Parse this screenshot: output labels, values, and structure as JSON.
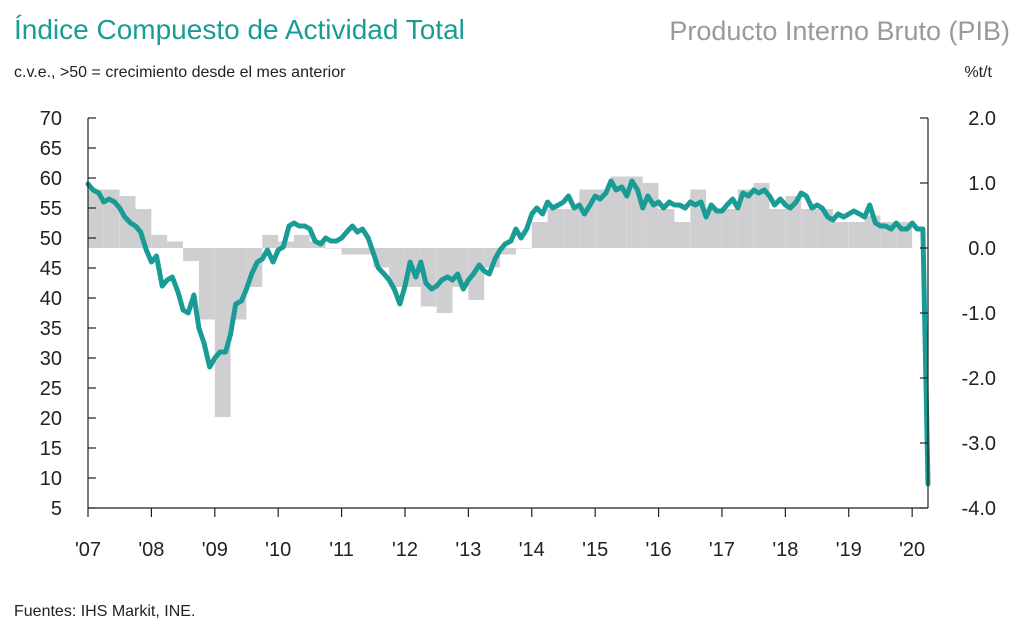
{
  "header": {
    "title": "Índice Compuesto de Actividad Total",
    "right_title": "Producto Interno Bruto (PIB)",
    "subtitle": "c.v.e., >50 = crecimiento desde el mes anterior",
    "right_unit": "%t/t"
  },
  "footer": {
    "source": "Fuentes: IHS Markit, INE."
  },
  "colors": {
    "line": "#1a9c96",
    "bars": "#cfcfd1",
    "axis": "#222222"
  },
  "chart_data": {
    "type": "line",
    "title": "Índice Compuesto de Actividad Total",
    "subtitle": "c.v.e., >50 = crecimiento desde el mes anterior",
    "grid": false,
    "x_tick_labels": [
      "'07",
      "'08",
      "'09",
      "'10",
      "'11",
      "'12",
      "'13",
      "'14",
      "'15",
      "'16",
      "'17",
      "'18",
      "'19",
      "'20"
    ],
    "x_range": [
      2007.0,
      2020.25
    ],
    "left_axis": {
      "ylim": [
        5,
        70
      ],
      "ticks": [
        70,
        65,
        60,
        55,
        50,
        45,
        40,
        35,
        30,
        25,
        20,
        15,
        10,
        5
      ]
    },
    "right_axis": {
      "ylim": [
        -4.0,
        2.0
      ],
      "unit": "%t/t",
      "tick_labels": [
        "2.0",
        "1.0",
        "0.0",
        "-1.0",
        "-2.0",
        "-3.0",
        "-4.0"
      ],
      "tick_values": [
        2.0,
        1.0,
        0.0,
        -1.0,
        -2.0,
        -3.0,
        -4.0
      ]
    },
    "series": [
      {
        "name": "Índice Compuesto de Actividad Total",
        "axis": "left",
        "style": "line",
        "points": [
          [
            2007.0,
            59.0
          ],
          [
            2007.08,
            58.0
          ],
          [
            2007.17,
            57.5
          ],
          [
            2007.25,
            56.0
          ],
          [
            2007.33,
            56.5
          ],
          [
            2007.42,
            56.0
          ],
          [
            2007.5,
            55.0
          ],
          [
            2007.58,
            53.5
          ],
          [
            2007.67,
            52.5
          ],
          [
            2007.75,
            52.0
          ],
          [
            2007.83,
            51.0
          ],
          [
            2007.92,
            48.0
          ],
          [
            2008.0,
            46.0
          ],
          [
            2008.08,
            47.0
          ],
          [
            2008.17,
            42.0
          ],
          [
            2008.25,
            43.0
          ],
          [
            2008.33,
            43.5
          ],
          [
            2008.42,
            41.0
          ],
          [
            2008.5,
            38.0
          ],
          [
            2008.58,
            37.5
          ],
          [
            2008.67,
            40.5
          ],
          [
            2008.75,
            35.0
          ],
          [
            2008.83,
            32.5
          ],
          [
            2008.92,
            28.5
          ],
          [
            2009.0,
            30.0
          ],
          [
            2009.08,
            31.0
          ],
          [
            2009.17,
            31.0
          ],
          [
            2009.25,
            34.0
          ],
          [
            2009.33,
            39.0
          ],
          [
            2009.42,
            39.5
          ],
          [
            2009.5,
            41.5
          ],
          [
            2009.58,
            44.0
          ],
          [
            2009.67,
            46.0
          ],
          [
            2009.75,
            46.5
          ],
          [
            2009.83,
            48.0
          ],
          [
            2009.92,
            46.0
          ],
          [
            2010.0,
            48.0
          ],
          [
            2010.08,
            48.5
          ],
          [
            2010.17,
            52.0
          ],
          [
            2010.25,
            52.5
          ],
          [
            2010.33,
            52.0
          ],
          [
            2010.42,
            52.0
          ],
          [
            2010.5,
            51.5
          ],
          [
            2010.58,
            49.5
          ],
          [
            2010.67,
            49.0
          ],
          [
            2010.75,
            50.0
          ],
          [
            2010.83,
            49.5
          ],
          [
            2010.92,
            49.5
          ],
          [
            2011.0,
            50.0
          ],
          [
            2011.08,
            51.0
          ],
          [
            2011.17,
            52.0
          ],
          [
            2011.25,
            51.0
          ],
          [
            2011.33,
            51.5
          ],
          [
            2011.42,
            50.0
          ],
          [
            2011.5,
            47.5
          ],
          [
            2011.58,
            45.0
          ],
          [
            2011.67,
            44.0
          ],
          [
            2011.75,
            43.0
          ],
          [
            2011.83,
            41.5
          ],
          [
            2011.92,
            39.0
          ],
          [
            2012.0,
            42.0
          ],
          [
            2012.08,
            46.0
          ],
          [
            2012.17,
            43.5
          ],
          [
            2012.25,
            46.0
          ],
          [
            2012.33,
            42.5
          ],
          [
            2012.42,
            41.5
          ],
          [
            2012.5,
            42.0
          ],
          [
            2012.58,
            43.0
          ],
          [
            2012.67,
            43.5
          ],
          [
            2012.75,
            43.0
          ],
          [
            2012.83,
            44.0
          ],
          [
            2012.92,
            41.5
          ],
          [
            2013.0,
            43.0
          ],
          [
            2013.08,
            44.0
          ],
          [
            2013.17,
            45.5
          ],
          [
            2013.25,
            44.5
          ],
          [
            2013.33,
            44.0
          ],
          [
            2013.42,
            46.5
          ],
          [
            2013.5,
            48.0
          ],
          [
            2013.58,
            49.0
          ],
          [
            2013.67,
            49.5
          ],
          [
            2013.75,
            51.5
          ],
          [
            2013.83,
            50.0
          ],
          [
            2013.92,
            51.5
          ],
          [
            2014.0,
            54.0
          ],
          [
            2014.08,
            55.0
          ],
          [
            2014.17,
            54.0
          ],
          [
            2014.25,
            56.0
          ],
          [
            2014.33,
            55.0
          ],
          [
            2014.42,
            55.5
          ],
          [
            2014.5,
            56.0
          ],
          [
            2014.58,
            57.0
          ],
          [
            2014.67,
            55.0
          ],
          [
            2014.75,
            55.5
          ],
          [
            2014.83,
            54.0
          ],
          [
            2014.92,
            55.5
          ],
          [
            2015.0,
            57.0
          ],
          [
            2015.08,
            56.5
          ],
          [
            2015.17,
            57.5
          ],
          [
            2015.25,
            59.5
          ],
          [
            2015.33,
            58.0
          ],
          [
            2015.42,
            58.5
          ],
          [
            2015.5,
            57.0
          ],
          [
            2015.58,
            59.5
          ],
          [
            2015.67,
            58.0
          ],
          [
            2015.75,
            55.0
          ],
          [
            2015.83,
            57.0
          ],
          [
            2015.92,
            55.5
          ],
          [
            2016.0,
            56.0
          ],
          [
            2016.08,
            55.0
          ],
          [
            2016.17,
            56.0
          ],
          [
            2016.25,
            55.5
          ],
          [
            2016.33,
            55.5
          ],
          [
            2016.42,
            55.0
          ],
          [
            2016.5,
            56.0
          ],
          [
            2016.58,
            55.5
          ],
          [
            2016.67,
            56.0
          ],
          [
            2016.75,
            53.5
          ],
          [
            2016.83,
            55.5
          ],
          [
            2016.92,
            54.5
          ],
          [
            2017.0,
            54.5
          ],
          [
            2017.08,
            55.5
          ],
          [
            2017.17,
            56.5
          ],
          [
            2017.25,
            55.0
          ],
          [
            2017.33,
            57.5
          ],
          [
            2017.42,
            57.0
          ],
          [
            2017.5,
            58.0
          ],
          [
            2017.58,
            57.5
          ],
          [
            2017.67,
            58.0
          ],
          [
            2017.75,
            57.0
          ],
          [
            2017.83,
            55.5
          ],
          [
            2017.92,
            56.5
          ],
          [
            2018.0,
            55.5
          ],
          [
            2018.08,
            55.0
          ],
          [
            2018.17,
            56.0
          ],
          [
            2018.25,
            57.5
          ],
          [
            2018.33,
            57.0
          ],
          [
            2018.42,
            55.0
          ],
          [
            2018.5,
            55.5
          ],
          [
            2018.58,
            55.0
          ],
          [
            2018.67,
            53.5
          ],
          [
            2018.75,
            53.0
          ],
          [
            2018.83,
            54.0
          ],
          [
            2018.92,
            53.5
          ],
          [
            2019.0,
            54.0
          ],
          [
            2019.08,
            54.5
          ],
          [
            2019.17,
            54.0
          ],
          [
            2019.25,
            53.5
          ],
          [
            2019.33,
            55.5
          ],
          [
            2019.42,
            52.5
          ],
          [
            2019.5,
            52.0
          ],
          [
            2019.58,
            52.0
          ],
          [
            2019.67,
            51.5
          ],
          [
            2019.75,
            52.5
          ],
          [
            2019.83,
            51.5
          ],
          [
            2019.92,
            51.5
          ],
          [
            2020.0,
            52.5
          ],
          [
            2020.08,
            51.5
          ],
          [
            2020.17,
            51.5
          ],
          [
            2020.25,
            9.0
          ]
        ]
      },
      {
        "name": "Producto Interno Bruto (PIB)",
        "axis": "right",
        "style": "bar",
        "bar_width": 0.25,
        "points": [
          [
            2007.0,
            0.9
          ],
          [
            2007.25,
            0.9
          ],
          [
            2007.5,
            0.8
          ],
          [
            2007.75,
            0.6
          ],
          [
            2008.0,
            0.2
          ],
          [
            2008.25,
            0.1
          ],
          [
            2008.5,
            -0.2
          ],
          [
            2008.75,
            -1.1
          ],
          [
            2009.0,
            -2.6
          ],
          [
            2009.25,
            -1.1
          ],
          [
            2009.5,
            -0.6
          ],
          [
            2009.75,
            0.2
          ],
          [
            2010.0,
            0.1
          ],
          [
            2010.25,
            0.2
          ],
          [
            2010.5,
            0.1
          ],
          [
            2010.75,
            0.0
          ],
          [
            2011.0,
            -0.1
          ],
          [
            2011.25,
            -0.1
          ],
          [
            2011.5,
            -0.3
          ],
          [
            2011.75,
            -0.6
          ],
          [
            2012.0,
            -0.6
          ],
          [
            2012.25,
            -0.9
          ],
          [
            2012.5,
            -1.0
          ],
          [
            2012.75,
            -0.6
          ],
          [
            2013.0,
            -0.8
          ],
          [
            2013.25,
            -0.3
          ],
          [
            2013.5,
            -0.1
          ],
          [
            2013.75,
            0.0
          ],
          [
            2014.0,
            0.4
          ],
          [
            2014.25,
            0.6
          ],
          [
            2014.5,
            0.6
          ],
          [
            2014.75,
            0.9
          ],
          [
            2015.0,
            0.9
          ],
          [
            2015.25,
            1.1
          ],
          [
            2015.5,
            1.1
          ],
          [
            2015.75,
            1.0
          ],
          [
            2016.0,
            0.6
          ],
          [
            2016.25,
            0.4
          ],
          [
            2016.5,
            0.9
          ],
          [
            2016.75,
            0.6
          ],
          [
            2017.0,
            0.6
          ],
          [
            2017.25,
            0.9
          ],
          [
            2017.5,
            1.0
          ],
          [
            2017.75,
            0.6
          ],
          [
            2018.0,
            0.8
          ],
          [
            2018.25,
            0.6
          ],
          [
            2018.5,
            0.6
          ],
          [
            2018.75,
            0.4
          ],
          [
            2019.0,
            0.4
          ],
          [
            2019.25,
            0.5
          ],
          [
            2019.5,
            0.4
          ],
          [
            2019.75,
            0.4
          ]
        ]
      }
    ]
  }
}
